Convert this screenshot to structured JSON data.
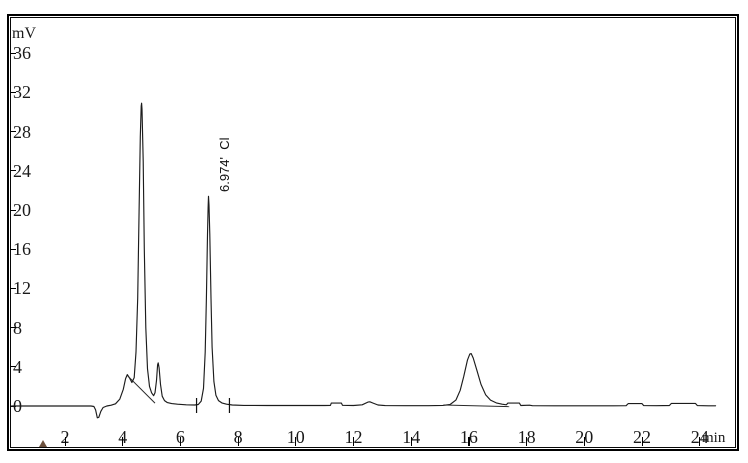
{
  "chart_data": {
    "type": "line",
    "title": "",
    "ylabel": "mV",
    "xlabel": "min",
    "x_ticks": [
      2,
      4,
      6,
      8,
      10,
      12,
      14,
      16,
      18,
      20,
      22,
      24
    ],
    "y_ticks": [
      0,
      4,
      8,
      12,
      16,
      20,
      24,
      28,
      32,
      36
    ],
    "xlim": [
      0,
      24.7
    ],
    "ylim": [
      -2,
      39.5
    ],
    "grid": false,
    "legend": "none",
    "annotation": {
      "text": "6.974'  Cl",
      "rotated_deg": -90
    },
    "peaks": [
      {
        "time": 4.65,
        "height_mV": 30.8,
        "label": ""
      },
      {
        "time": 5.22,
        "height_mV": 4.4,
        "label": ""
      },
      {
        "time": 6.974,
        "height_mV": 21.4,
        "label": "6.974'  Cl",
        "analyte": "Cl"
      },
      {
        "time": 16.05,
        "height_mV": 5.3,
        "label": ""
      }
    ],
    "baseline_dip": {
      "time": 3.14,
      "depth_mV": -1.2
    },
    "injection_marker_time": 1.24,
    "integration_tick_times": [
      6.56,
      7.7
    ],
    "integration_baselines": [
      [
        [
          4.18,
          3.05
        ],
        [
          5.12,
          0.3
        ]
      ],
      [
        [
          15.12,
          0.1
        ],
        [
          17.4,
          -0.06
        ]
      ]
    ],
    "trace": [
      [
        0.15,
        0
      ],
      [
        1.2,
        0
      ],
      [
        2.4,
        0
      ],
      [
        2.9,
        0
      ],
      [
        3.0,
        -0.05
      ],
      [
        3.06,
        -0.4
      ],
      [
        3.12,
        -1.2
      ],
      [
        3.17,
        -1.15
      ],
      [
        3.24,
        -0.55
      ],
      [
        3.32,
        -0.15
      ],
      [
        3.45,
        0.0
      ],
      [
        3.6,
        0.08
      ],
      [
        3.75,
        0.22
      ],
      [
        3.9,
        0.7
      ],
      [
        4.02,
        1.7
      ],
      [
        4.1,
        2.8
      ],
      [
        4.16,
        3.2
      ],
      [
        4.24,
        2.85
      ],
      [
        4.32,
        2.4
      ],
      [
        4.4,
        2.9
      ],
      [
        4.46,
        5.5
      ],
      [
        4.52,
        11
      ],
      [
        4.57,
        20
      ],
      [
        4.61,
        27.5
      ],
      [
        4.64,
        30.6
      ],
      [
        4.655,
        30.9
      ],
      [
        4.67,
        30.3
      ],
      [
        4.71,
        25
      ],
      [
        4.75,
        16
      ],
      [
        4.8,
        8
      ],
      [
        4.86,
        3.8
      ],
      [
        4.93,
        2.0
      ],
      [
        5.0,
        1.35
      ],
      [
        5.07,
        1.05
      ],
      [
        5.12,
        1.35
      ],
      [
        5.17,
        2.6
      ],
      [
        5.21,
        4.2
      ],
      [
        5.23,
        4.4
      ],
      [
        5.26,
        3.9
      ],
      [
        5.31,
        2.2
      ],
      [
        5.37,
        1.0
      ],
      [
        5.45,
        0.55
      ],
      [
        5.55,
        0.35
      ],
      [
        5.7,
        0.25
      ],
      [
        5.9,
        0.18
      ],
      [
        6.2,
        0.12
      ],
      [
        6.5,
        0.1
      ],
      [
        6.62,
        0.15
      ],
      [
        6.72,
        0.5
      ],
      [
        6.8,
        1.8
      ],
      [
        6.86,
        5.5
      ],
      [
        6.9,
        11
      ],
      [
        6.94,
        17.5
      ],
      [
        6.96,
        20.2
      ],
      [
        6.974,
        21.4
      ],
      [
        6.99,
        20.5
      ],
      [
        7.02,
        17.5
      ],
      [
        7.06,
        11
      ],
      [
        7.1,
        6
      ],
      [
        7.16,
        2.5
      ],
      [
        7.23,
        1.1
      ],
      [
        7.32,
        0.55
      ],
      [
        7.45,
        0.3
      ],
      [
        7.6,
        0.18
      ],
      [
        7.8,
        0.1
      ],
      [
        8.2,
        0.06
      ],
      [
        9,
        0.05
      ],
      [
        10,
        0.05
      ],
      [
        11.0,
        0.05
      ],
      [
        11.2,
        0.06
      ],
      [
        11.23,
        0.3
      ],
      [
        11.58,
        0.3
      ],
      [
        11.62,
        0.07
      ],
      [
        12.0,
        0.05
      ],
      [
        12.3,
        0.12
      ],
      [
        12.5,
        0.4
      ],
      [
        12.57,
        0.43
      ],
      [
        12.68,
        0.3
      ],
      [
        12.85,
        0.1
      ],
      [
        13.1,
        0.04
      ],
      [
        13.8,
        0.03
      ],
      [
        14.6,
        0.03
      ],
      [
        15.1,
        0.06
      ],
      [
        15.35,
        0.15
      ],
      [
        15.55,
        0.6
      ],
      [
        15.7,
        1.6
      ],
      [
        15.82,
        3.0
      ],
      [
        15.95,
        4.7
      ],
      [
        16.03,
        5.3
      ],
      [
        16.08,
        5.35
      ],
      [
        16.15,
        4.9
      ],
      [
        16.28,
        3.6
      ],
      [
        16.42,
        2.2
      ],
      [
        16.58,
        1.15
      ],
      [
        16.75,
        0.6
      ],
      [
        16.95,
        0.32
      ],
      [
        17.15,
        0.18
      ],
      [
        17.3,
        0.12
      ],
      [
        17.35,
        0.3
      ],
      [
        17.75,
        0.3
      ],
      [
        17.8,
        0.05
      ],
      [
        18.1,
        0.08
      ],
      [
        18.2,
        0.03
      ],
      [
        19,
        0.02
      ],
      [
        20,
        0.02
      ],
      [
        21,
        0.02
      ],
      [
        21.45,
        0.03
      ],
      [
        21.52,
        0.24
      ],
      [
        22.0,
        0.24
      ],
      [
        22.06,
        0.04
      ],
      [
        22.5,
        0.03
      ],
      [
        22.95,
        0.05
      ],
      [
        23.02,
        0.27
      ],
      [
        23.85,
        0.27
      ],
      [
        23.92,
        0.04
      ],
      [
        24.3,
        0.02
      ],
      [
        24.55,
        0.02
      ]
    ],
    "colors": {
      "trace": "#1c1c1c",
      "frame": "#000000",
      "text": "#1a1a1a",
      "background": "#ffffff",
      "injection_marker": "#54331c"
    }
  }
}
